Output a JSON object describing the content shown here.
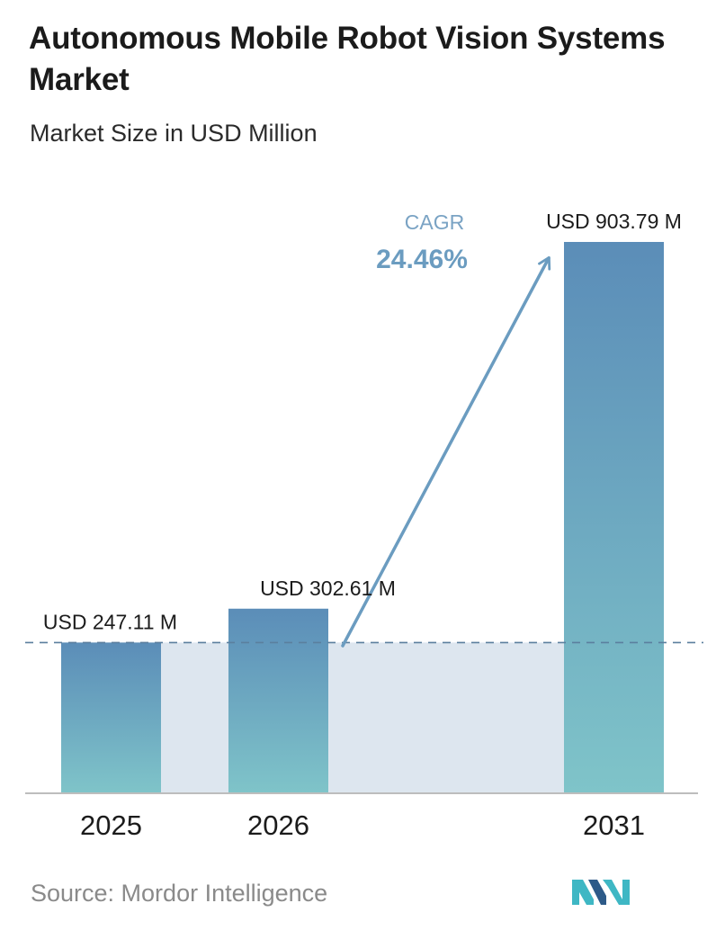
{
  "header": {
    "title": "Autonomous Mobile Robot Vision Systems Market",
    "subtitle": "Market Size in USD Million"
  },
  "footer": {
    "source": "Source: Mordor Intelligence"
  },
  "cagr": {
    "label": "CAGR",
    "value": "24.46%"
  },
  "colors": {
    "bar_top": "#5b8db8",
    "bar_bottom": "#7fc4c9",
    "band": "#dde6ef",
    "arrow": "#6b9cc0",
    "dashed_line": "#5b7f9e",
    "logo_dark": "#2d5a88",
    "logo_light": "#3fb7c4"
  },
  "chart_data": {
    "type": "bar",
    "title": "Autonomous Mobile Robot Vision Systems Market",
    "subtitle": "Market Size in USD Million",
    "categories": [
      "2025",
      "2026",
      "2031"
    ],
    "values": [
      247.11,
      302.61,
      903.79
    ],
    "value_labels": [
      "USD 247.11 M",
      "USD 302.61 M",
      "USD 903.79 M"
    ],
    "ylim": [
      0,
      903.79
    ],
    "grid": false,
    "legend": "none",
    "reference_line": 247.11
  }
}
